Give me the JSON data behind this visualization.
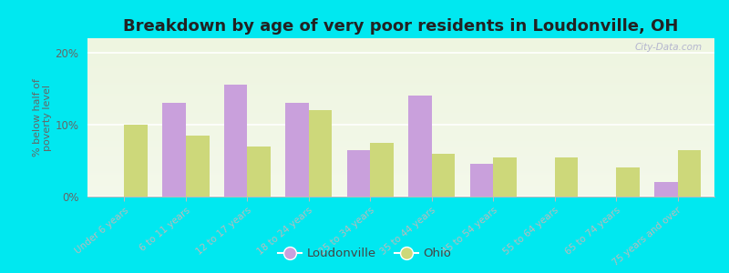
{
  "title": "Breakdown by age of very poor residents in Loudonville, OH",
  "ylabel": "% below half of\npoverty level",
  "categories": [
    "Under 6 years",
    "6 to 11 years",
    "12 to 17 years",
    "18 to 24 years",
    "25 to 34 years",
    "35 to 44 years",
    "45 to 54 years",
    "55 to 64 years",
    "65 to 74 years",
    "75 years and over"
  ],
  "loudonville": [
    0,
    13.0,
    15.5,
    13.0,
    6.5,
    14.0,
    4.5,
    0,
    0,
    2.0
  ],
  "ohio": [
    10.0,
    8.5,
    7.0,
    12.0,
    7.5,
    6.0,
    5.5,
    5.5,
    4.0,
    6.5
  ],
  "loudonville_color": "#c9a0dc",
  "ohio_color": "#cdd87a",
  "bg_outer": "#00e8f0",
  "bg_plot": "#eef5e0",
  "ylim": [
    0,
    22
  ],
  "yticks": [
    0,
    10,
    20
  ],
  "ytick_labels": [
    "0%",
    "10%",
    "20%"
  ],
  "title_fontsize": 13,
  "bar_width": 0.38,
  "watermark": "City-Data.com"
}
